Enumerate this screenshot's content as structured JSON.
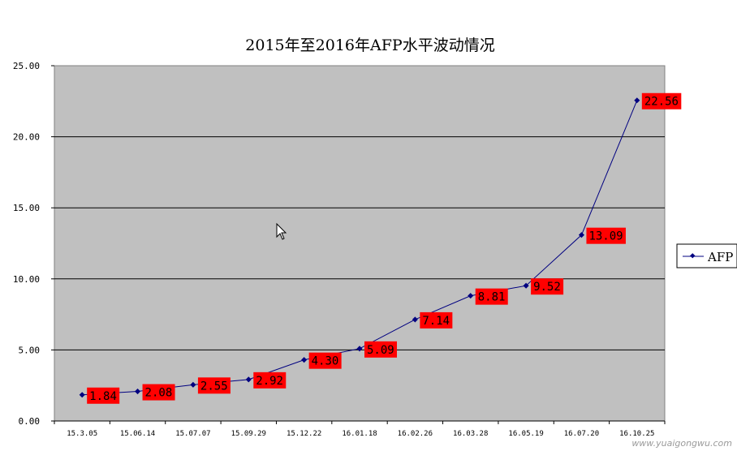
{
  "chart_data": {
    "type": "line",
    "title": "2015年至2016年AFP水平波动情况",
    "categories": [
      "15.3.05",
      "15.06.14",
      "15.07.07",
      "15.09.29",
      "15.12.22",
      "16.01.18",
      "16.02.26",
      "16.03.28",
      "16.05.19",
      "16.07.20",
      "16.10.25"
    ],
    "series": [
      {
        "name": "AFP",
        "values": [
          1.84,
          2.08,
          2.55,
          2.92,
          4.3,
          5.09,
          7.14,
          8.81,
          9.52,
          13.09,
          22.56
        ],
        "labels": [
          "1.84",
          "2.08",
          "2.55",
          "2.92",
          "4.30",
          "5.09",
          "7.14",
          "8.81",
          "9.52",
          "13.09",
          "22.56"
        ]
      }
    ],
    "yticks": [
      "0.00",
      "5.00",
      "10.00",
      "15.00",
      "20.00",
      "25.00"
    ],
    "ylim": [
      0,
      25
    ],
    "grid": true,
    "legend": "right",
    "colors": {
      "line": "#000080",
      "plot_bg": "#c0c0c0",
      "label_bg": "#ff0000"
    }
  },
  "watermark": "www.yuaigongwu.com"
}
